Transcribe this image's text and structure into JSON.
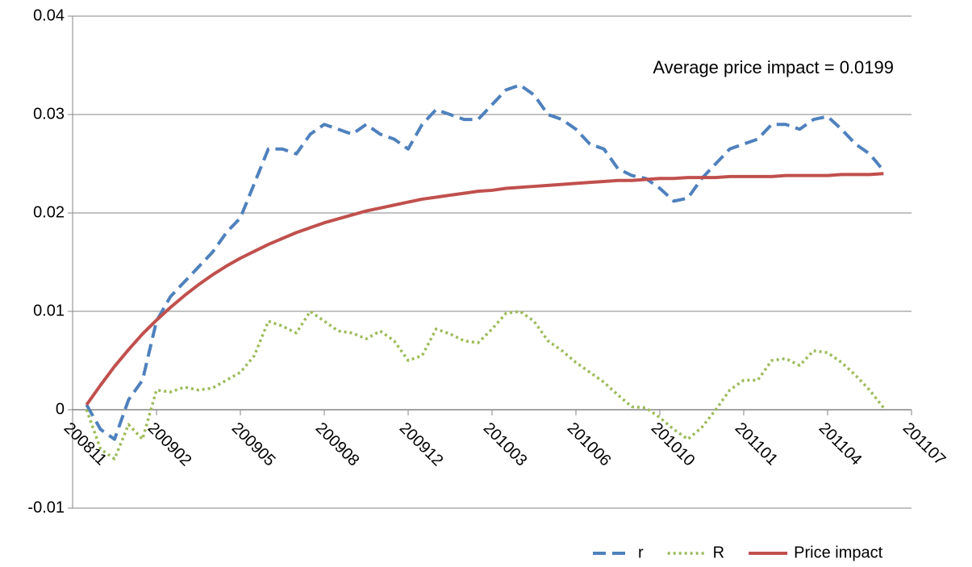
{
  "chart_data": {
    "type": "line",
    "annotation": "Average price impact = 0.0199",
    "categories": [
      "200811",
      null,
      null,
      null,
      null,
      null,
      "200902",
      null,
      null,
      null,
      null,
      null,
      "200905",
      null,
      null,
      null,
      null,
      null,
      "200908",
      null,
      null,
      null,
      null,
      null,
      "200912",
      null,
      null,
      null,
      null,
      null,
      "201003",
      null,
      null,
      null,
      null,
      null,
      "201006",
      null,
      null,
      null,
      null,
      null,
      "201010",
      null,
      null,
      null,
      null,
      null,
      "201101",
      null,
      null,
      null,
      null,
      null,
      "201104",
      null,
      null,
      null,
      null,
      null,
      "201107"
    ],
    "series": [
      {
        "name": "r",
        "color": "#4f81bd",
        "style": "dashed",
        "values": [
          null,
          0.0005,
          -0.002,
          -0.003,
          0.001,
          0.003,
          0.009,
          0.0115,
          0.013,
          0.0145,
          0.016,
          0.018,
          0.0195,
          0.023,
          0.0265,
          0.0265,
          0.026,
          0.028,
          0.029,
          0.0285,
          0.028,
          0.029,
          0.028,
          0.0275,
          0.0265,
          0.029,
          0.0305,
          0.03,
          0.0295,
          0.0295,
          0.031,
          0.0325,
          0.033,
          0.032,
          0.03,
          0.0295,
          0.0285,
          0.027,
          0.0265,
          0.0245,
          0.0238,
          0.0235,
          0.0225,
          0.0212,
          0.0215,
          0.0235,
          0.025,
          0.0265,
          0.027,
          0.0275,
          0.029,
          0.029,
          0.0285,
          0.0295,
          0.0298,
          0.0285,
          0.027,
          0.026,
          0.0243,
          null,
          null
        ]
      },
      {
        "name": "R",
        "color": "#9bbb59",
        "style": "dotted",
        "values": [
          null,
          0,
          -0.004,
          -0.005,
          -0.0015,
          -0.003,
          0.002,
          0.0018,
          0.0023,
          0.002,
          0.0022,
          0.003,
          0.0038,
          0.0055,
          0.009,
          0.0085,
          0.0078,
          0.01,
          0.009,
          0.008,
          0.0078,
          0.0072,
          0.008,
          0.007,
          0.005,
          0.0055,
          0.0082,
          0.0077,
          0.007,
          0.0068,
          0.0082,
          0.0098,
          0.01,
          0.009,
          0.007,
          0.006,
          0.0048,
          0.0038,
          0.0028,
          0.0015,
          0.0003,
          0.0002,
          -0.0008,
          -0.002,
          -0.003,
          -0.0018,
          0,
          0.002,
          0.003,
          0.003,
          0.005,
          0.0052,
          0.0045,
          0.006,
          0.0058,
          0.0048,
          0.0035,
          0.002,
          0.0002,
          null,
          null
        ]
      },
      {
        "name": "Price impact",
        "color": "#c0504d",
        "style": "solid",
        "values": [
          null,
          0.0005,
          0.0025,
          0.0044,
          0.0061,
          0.0077,
          0.0091,
          0.0104,
          0.0116,
          0.0127,
          0.0137,
          0.0146,
          0.0154,
          0.0161,
          0.0168,
          0.0174,
          0.018,
          0.0185,
          0.019,
          0.0194,
          0.0198,
          0.0202,
          0.0205,
          0.0208,
          0.0211,
          0.0214,
          0.0216,
          0.0218,
          0.022,
          0.0222,
          0.0223,
          0.0225,
          0.0226,
          0.0227,
          0.0228,
          0.0229,
          0.023,
          0.0231,
          0.0232,
          0.0233,
          0.0233,
          0.0234,
          0.0235,
          0.0235,
          0.0236,
          0.0236,
          0.0236,
          0.0237,
          0.0237,
          0.0237,
          0.0237,
          0.0238,
          0.0238,
          0.0238,
          0.0238,
          0.0239,
          0.0239,
          0.0239,
          0.024,
          null,
          null
        ]
      }
    ],
    "ylim": [
      -0.01,
      0.04
    ],
    "yticks": [
      -0.01,
      0,
      0.01,
      0.02,
      0.03,
      0.04
    ],
    "grid": true,
    "legend": "bottom"
  }
}
